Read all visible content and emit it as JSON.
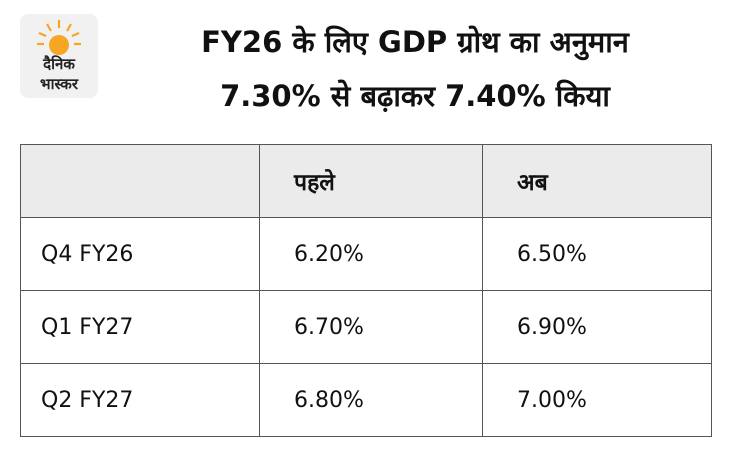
{
  "logo": {
    "line1": "दैनिक",
    "line2": "भास्कर"
  },
  "header": {
    "title_line1": "FY26 के लिए GDP ग्रोथ का अनुमान",
    "title_line2": "7.30% से बढ़ाकर 7.40% किया"
  },
  "table": {
    "columns": [
      "पहले",
      "अब"
    ],
    "rows": [
      [
        "Q4 FY26",
        "6.20%",
        "6.50%"
      ],
      [
        "Q1 FY27",
        "6.70%",
        "6.90%"
      ],
      [
        "Q2 FY27",
        "6.80%",
        "7.00%"
      ]
    ]
  }
}
